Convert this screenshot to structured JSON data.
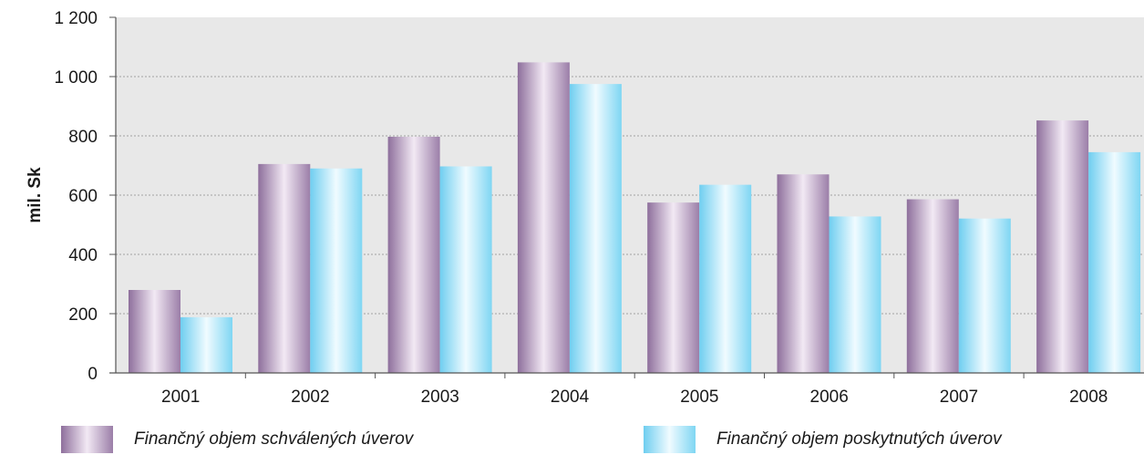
{
  "chart_data": {
    "type": "bar",
    "ylabel": "mil. Sk",
    "ylim": [
      0,
      1200
    ],
    "yticks": [
      0,
      200,
      400,
      600,
      800,
      1000,
      1200
    ],
    "ytick_labels": [
      "0",
      "200",
      "400",
      "600",
      "800",
      "1 000",
      "1 200"
    ],
    "categories": [
      "2001",
      "2002",
      "2003",
      "2004",
      "2005",
      "2006",
      "2007",
      "2008"
    ],
    "grid": true,
    "legend_position": "bottom",
    "series": [
      {
        "name": "Finančný objem schválených úverov",
        "values": [
          280,
          705,
          797,
          1048,
          575,
          670,
          586,
          852
        ],
        "color": "#a58bb0"
      },
      {
        "name": "Finančný objem poskytnutých úverov",
        "values": [
          188,
          690,
          697,
          975,
          635,
          528,
          521,
          745
        ],
        "color": "#8ddcf5"
      }
    ]
  }
}
